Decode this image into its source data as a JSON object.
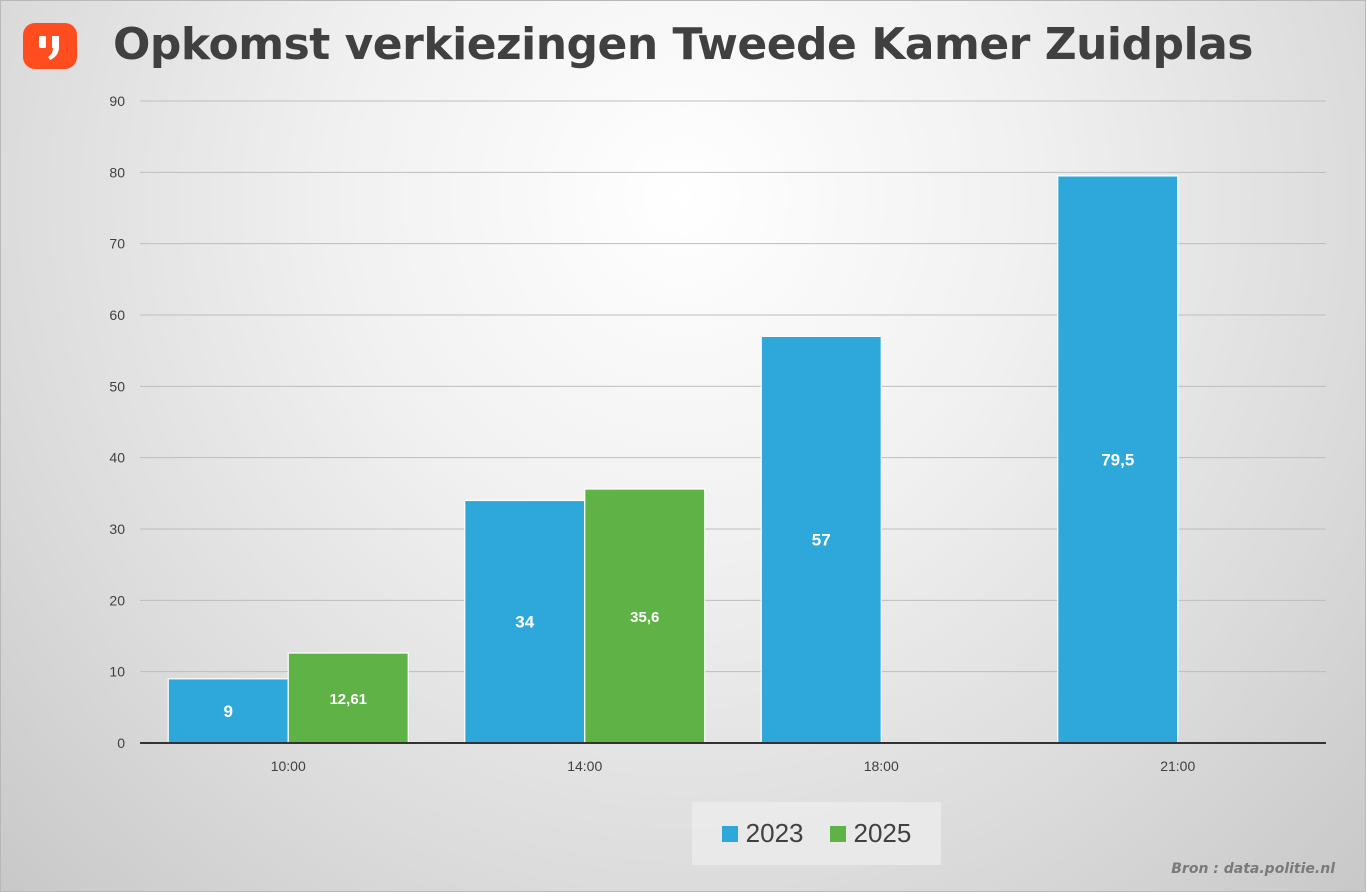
{
  "title": "Opkomst verkiezingen Tweede Kamer Zuidplas",
  "source_text": "Bron : data.politie.nl",
  "logo": {
    "icon": "quote-logo-icon",
    "color": "#ff4d1f"
  },
  "chart_data": {
    "type": "bar",
    "title": "Opkomst verkiezingen Tweede Kamer Zuidplas",
    "categories": [
      "10:00",
      "14:00",
      "18:00",
      "21:00"
    ],
    "series": [
      {
        "name": "2023",
        "color": "#2ea8db",
        "values": [
          9,
          34,
          57,
          79.5
        ],
        "labels": [
          "9",
          "34",
          "57",
          "79,5"
        ]
      },
      {
        "name": "2025",
        "color": "#5fb246",
        "values": [
          12.61,
          35.6,
          null,
          null
        ],
        "labels": [
          "12,61",
          "35,6",
          "",
          ""
        ]
      }
    ],
    "ylim": [
      0,
      90
    ],
    "yticks": [
      0,
      10,
      20,
      30,
      40,
      50,
      60,
      70,
      80,
      90
    ],
    "xlabel": "",
    "ylabel": "",
    "grid": true,
    "legend_position": "bottom"
  }
}
